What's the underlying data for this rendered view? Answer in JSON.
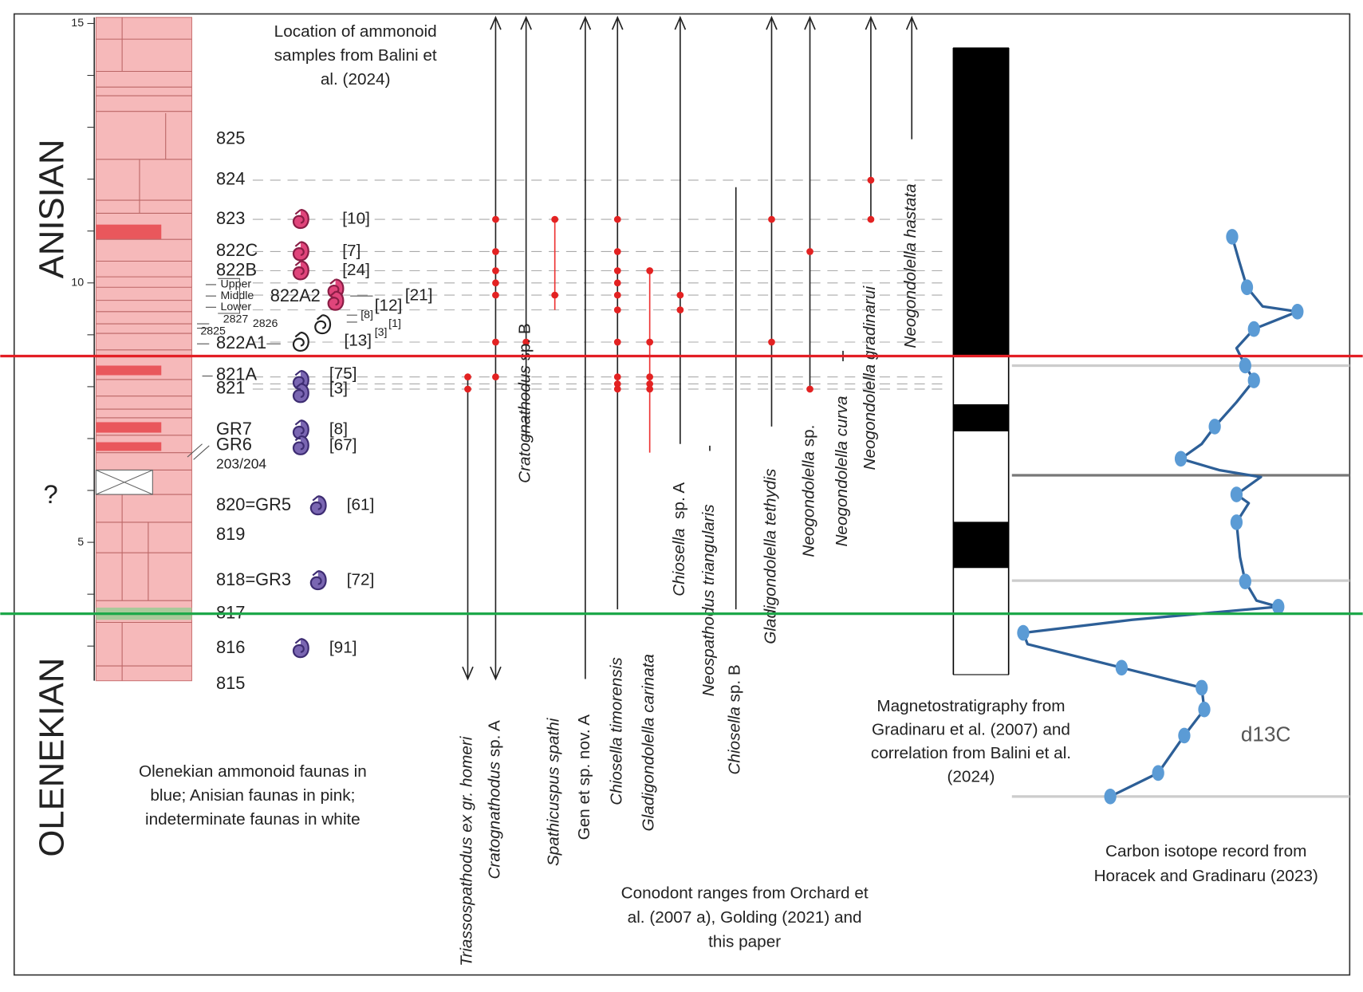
{
  "stages": {
    "anisian": "ANISIAN",
    "olenekian": "OLENEKIAN",
    "unknown": "?"
  },
  "scale": [
    "15",
    "10",
    "5"
  ],
  "captions": {
    "ammonoid_location": [
      "Location  of  ammonoid",
      "samples from  Balini  et",
      "al. (2024)"
    ],
    "faunas": [
      "Olenekian ammonoid faunas in",
      "blue; Anisian faunas in pink;",
      "indeterminate faunas in white"
    ],
    "conodont": [
      "Conodont ranges from Orchard et",
      "al. (2007 a), Golding (2021) and",
      "this paper"
    ],
    "magnetostratigraphy": [
      "Magnetostratigraphy from",
      "Gradinaru et al. (2007) and",
      "correlation from Balini et al.",
      "(2024)"
    ],
    "carbon": [
      "Carbon isotope record from",
      "Horacek and Gradinaru (2023)"
    ],
    "d13c": "d13C"
  },
  "beds": [
    "825",
    "824",
    "823",
    "822C",
    "822B",
    "822A2",
    "822A1",
    "821A",
    "821",
    "GR7",
    "GR6",
    "203/204",
    "820=GR5",
    "819",
    "818=GR3",
    "817",
    "816",
    "815"
  ],
  "subbeds": [
    "Upper",
    "Middle",
    "Lower",
    "2827",
    "2826",
    "2825"
  ],
  "counts": [
    "[10]",
    "[7]",
    "[24]",
    "[21]",
    "[12]",
    "[8]",
    "[1]",
    "[13]",
    "[3]",
    "[75]",
    "[3]",
    "[8]",
    "[67]",
    "[61]",
    "[72]",
    "[91]"
  ],
  "taxa": [
    {
      "italic": "Triassospathodus ex gr. homeri"
    },
    {
      "italic": "Cratognathodus",
      "plain": " sp. A"
    },
    {
      "italic": "Cratognathodus",
      "plain": " sp. B"
    },
    {
      "italic": "Spathicuspus spathi"
    },
    {
      "plain": "Gen et sp. nov. A"
    },
    {
      "italic": "Chiosella timorensis"
    },
    {
      "italic": "Gladigondolella carinata"
    },
    {
      "italic": "Chiosella",
      "plain": "  sp. A"
    },
    {
      "italic": "Neospathodus triangularis"
    },
    {
      "italic": "Chiosella",
      "plain": " sp. B"
    },
    {
      "italic": "Gladigondolella tethydis"
    },
    {
      "italic": "Neogondolella",
      "plain": " sp."
    },
    {
      "italic": "Neogondolella curva"
    },
    {
      "italic": "Neogondolella gradinarui"
    },
    {
      "italic": "Neogondolella hastata"
    }
  ]
}
